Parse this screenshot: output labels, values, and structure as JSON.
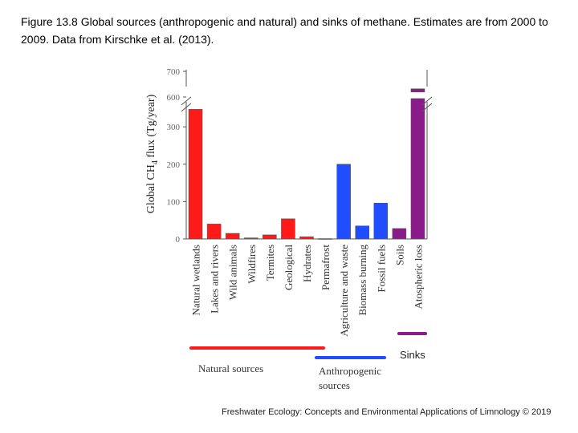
{
  "caption": "Figure 13.8 Global sources (anthropogenic and natural) and sinks of methane. Estimates are from 2000 to 2009. Data from Kirschke et al. (2013).",
  "footer": "Freshwater Ecology: Concepts and Environmental Applications of Limnology © 2019",
  "colors": {
    "natural": "#ff1a1a",
    "anthropogenic": "#1f4dff",
    "sinks": "#8b1a8b"
  },
  "chart_data": {
    "type": "bar",
    "ylabel": "Global CH4 flux (Tg/year)",
    "ylabel_main": "Global CH",
    "ylabel_sub": "4",
    "ylabel_rest": " flux (Tg/year)",
    "yticks_lower": [
      "0",
      "100",
      "200",
      "300"
    ],
    "yticks_upper": [
      "600",
      "700"
    ],
    "axis_break": [
      350,
      580
    ],
    "ylim": [
      0,
      700
    ],
    "categories": [
      "Natural wetlands",
      "Lakes and rivers",
      "Wild animals",
      "Wildfires",
      "Termites",
      "Geological",
      "Hydrates",
      "Permafrost",
      "Agriculture and waste",
      "Biomass burning",
      "Fossil fuels",
      "Soils",
      "Atospheric loss"
    ],
    "values": [
      347,
      40,
      15,
      3,
      11,
      54,
      6,
      1,
      200,
      35,
      96,
      28,
      632
    ],
    "groups": [
      "natural",
      "natural",
      "natural",
      "natural",
      "natural",
      "natural",
      "natural",
      "natural",
      "anthropogenic",
      "anthropogenic",
      "anthropogenic",
      "sinks",
      "sinks"
    ],
    "legend": {
      "natural": "Natural sources",
      "anthropogenic": "Anthropogenic sources",
      "anthropogenic_line1": "Anthropogenic",
      "anthropogenic_line2": "sources",
      "sinks": "Sinks"
    }
  }
}
